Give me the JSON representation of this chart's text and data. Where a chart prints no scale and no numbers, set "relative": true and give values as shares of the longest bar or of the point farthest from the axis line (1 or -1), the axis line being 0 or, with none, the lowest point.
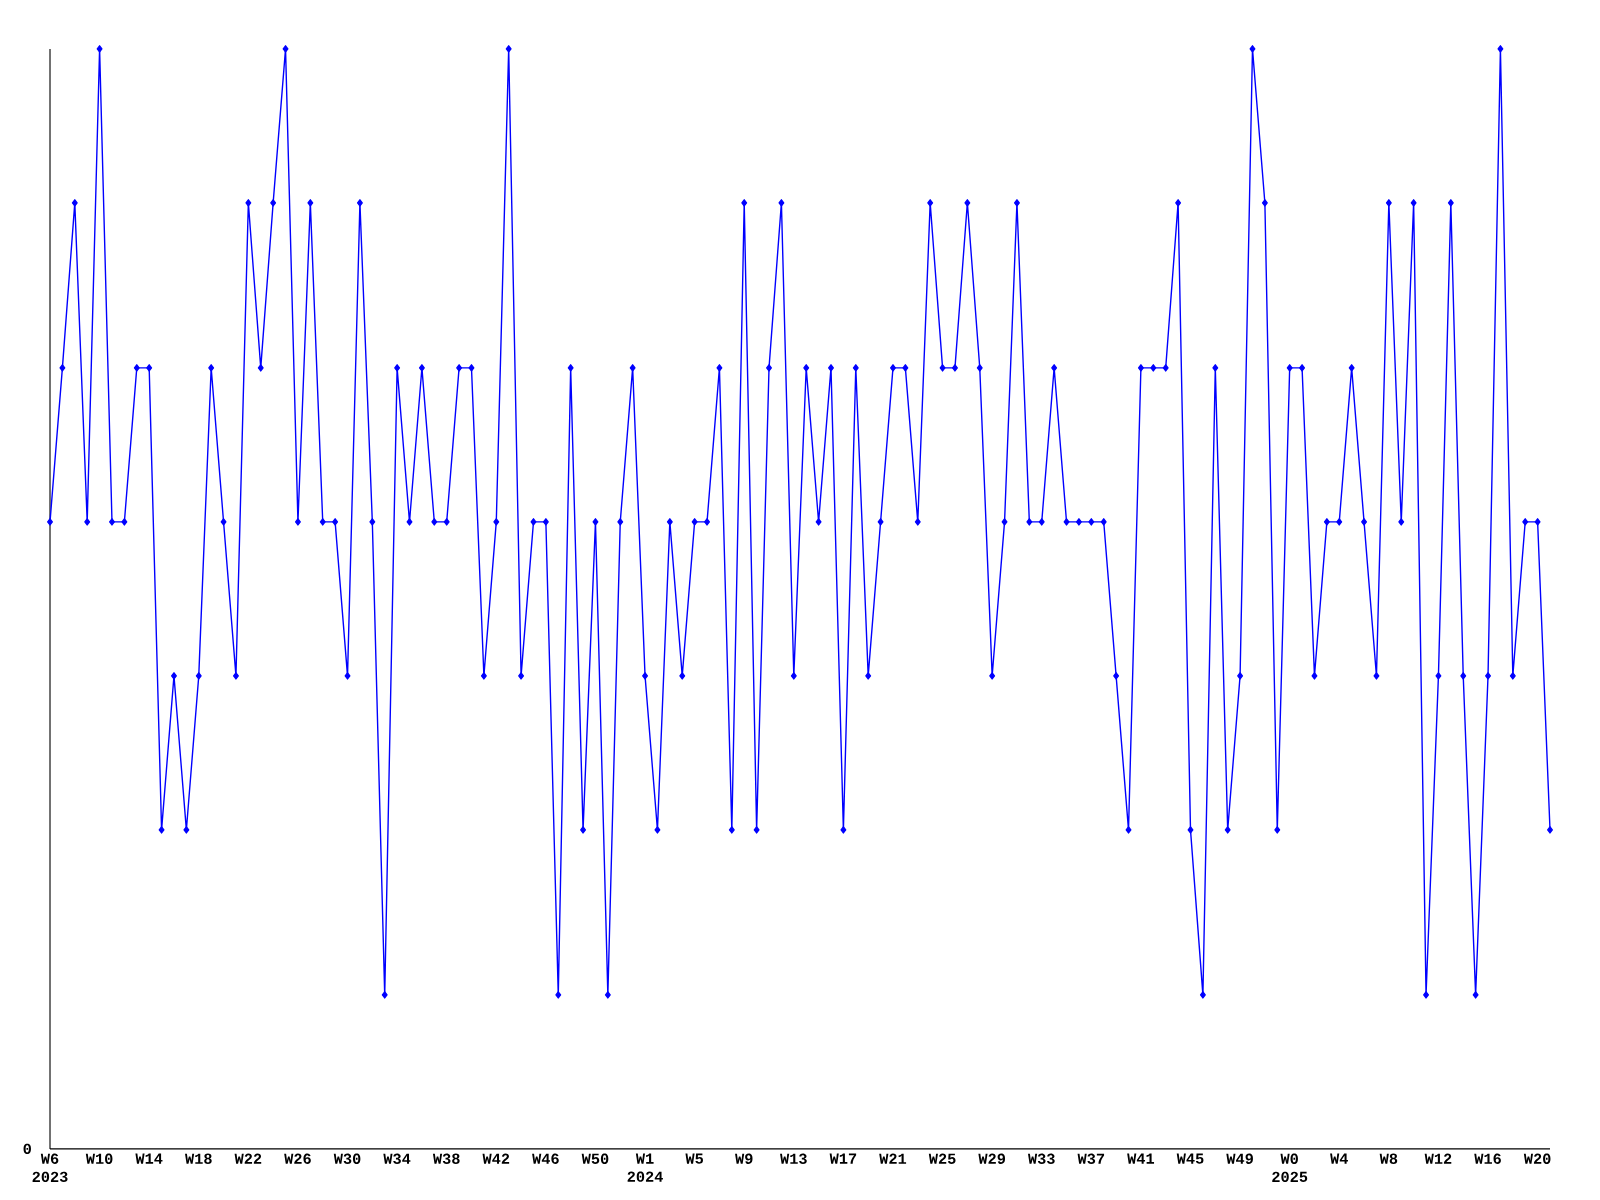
{
  "chart_data": {
    "type": "line",
    "relative": true,
    "color": "#0000ff",
    "marker": "diamond",
    "categories": [
      "W6 2023",
      null,
      null,
      null,
      "W10",
      null,
      null,
      null,
      "W14",
      null,
      null,
      null,
      "W18",
      null,
      null,
      null,
      "W22",
      null,
      null,
      null,
      "W26",
      null,
      null,
      null,
      "W30",
      null,
      null,
      null,
      "W34",
      null,
      null,
      null,
      "W38",
      null,
      null,
      null,
      "W42",
      null,
      null,
      null,
      "W46",
      null,
      null,
      null,
      "W50",
      null,
      null,
      null,
      "W1 2024",
      null,
      null,
      null,
      "W5",
      null,
      null,
      null,
      "W9",
      null,
      null,
      null,
      "W13",
      null,
      null,
      null,
      "W17",
      null,
      null,
      null,
      "W21",
      null,
      null,
      null,
      "W25",
      null,
      null,
      null,
      "W29",
      null,
      null,
      null,
      "W33",
      null,
      null,
      null,
      "W37",
      null,
      null,
      null,
      "W41",
      null,
      null,
      null,
      "W45",
      null,
      null,
      null,
      "W49",
      null,
      null,
      null,
      "W0 2025",
      null,
      null,
      null,
      "W4",
      null,
      null,
      null,
      "W8",
      null,
      null,
      null,
      "W12",
      null,
      null,
      null,
      "W16",
      null,
      null,
      null,
      "W20",
      null
    ],
    "values": [
      0.57,
      0.71,
      0.86,
      0.57,
      1,
      0.57,
      0.57,
      0.71,
      0.71,
      0.29,
      0.43,
      0.29,
      0.43,
      0.71,
      0.57,
      0.43,
      0.86,
      0.71,
      0.86,
      1,
      0.57,
      0.86,
      0.57,
      0.57,
      0.43,
      0.86,
      0.57,
      0.14,
      0.71,
      0.57,
      0.71,
      0.57,
      0.57,
      0.71,
      0.71,
      0.43,
      0.57,
      1,
      0.43,
      0.57,
      0.57,
      0.14,
      0.71,
      0.29,
      0.57,
      0.14,
      0.57,
      0.71,
      0.43,
      0.29,
      0.57,
      0.43,
      0.57,
      0.57,
      0.71,
      0.29,
      0.86,
      0.29,
      0.71,
      0.86,
      0.43,
      0.71,
      0.57,
      0.71,
      0.29,
      0.71,
      0.43,
      0.57,
      0.71,
      0.71,
      0.57,
      0.86,
      0.71,
      0.71,
      0.86,
      0.71,
      0.43,
      0.57,
      0.86,
      0.57,
      0.57,
      0.71,
      0.57,
      0.57,
      0.57,
      0.57,
      0.43,
      0.29,
      0.71,
      0.71,
      0.71,
      0.86,
      0.29,
      0.14,
      0.71,
      0.29,
      0.43,
      1,
      0.86,
      0.29,
      0.71,
      0.71,
      0.43,
      0.57,
      0.57,
      0.71,
      0.57,
      0.43,
      0.86,
      0.57,
      0.86,
      0.14,
      0.43,
      0.86,
      0.43,
      0.14,
      0.43,
      1,
      0.43,
      0.57,
      0.57,
      0.29
    ],
    "annotations": [
      "0"
    ]
  }
}
